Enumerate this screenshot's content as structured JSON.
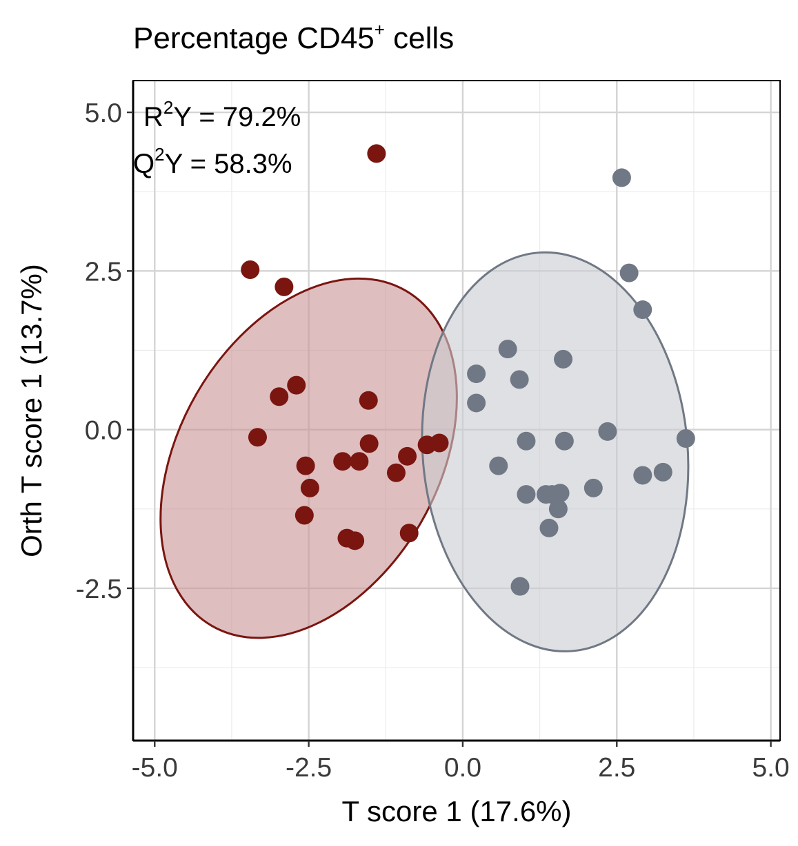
{
  "chart_data": {
    "type": "scatter",
    "title": "Percentage CD45",
    "title_superscript": "+",
    "title_suffix": " cells",
    "xlabel": "T score 1 (17.6%)",
    "ylabel": "Orth T score 1 (13.7%)",
    "xlim": [
      -5.35,
      5.15
    ],
    "ylim": [
      -4.9,
      5.5
    ],
    "xticks": [
      -5.0,
      -2.5,
      0.0,
      2.5,
      5.0
    ],
    "xtick_labels": [
      "-5.0",
      "-2.5",
      "0.0",
      "2.5",
      "5.0"
    ],
    "yticks": [
      -2.5,
      0.0,
      2.5,
      5.0
    ],
    "ytick_labels": [
      "-2.5",
      "0.0",
      "2.5",
      "5.0"
    ],
    "grid": true,
    "legend": "none",
    "annotations": [
      {
        "prefix": "R",
        "sup": "2",
        "suffix": "Y = 79.2%"
      },
      {
        "prefix": "Q",
        "sup": "2",
        "suffix": "Y = 58.3%"
      }
    ],
    "series": [
      {
        "color": "#7a1510",
        "fill": "#c89294",
        "ellipse": {
          "center": [
            -2.5,
            -0.45
          ],
          "rx": 2.1,
          "ry": 3.05,
          "rotation_deg": 30
        },
        "points": [
          [
            -1.4,
            4.35
          ],
          [
            -3.45,
            2.52
          ],
          [
            -2.9,
            2.25
          ],
          [
            -2.7,
            0.7
          ],
          [
            -2.98,
            0.52
          ],
          [
            -1.53,
            0.46
          ],
          [
            -3.33,
            -0.12
          ],
          [
            -2.55,
            -0.57
          ],
          [
            -2.48,
            -0.92
          ],
          [
            -2.57,
            -1.35
          ],
          [
            -1.95,
            -0.5
          ],
          [
            -1.68,
            -0.5
          ],
          [
            -1.52,
            -0.22
          ],
          [
            -1.08,
            -0.68
          ],
          [
            -0.9,
            -0.42
          ],
          [
            -0.58,
            -0.24
          ],
          [
            -0.38,
            -0.21
          ],
          [
            -1.88,
            -1.71
          ],
          [
            -1.75,
            -1.75
          ],
          [
            -0.87,
            -1.63
          ]
        ]
      },
      {
        "color": "#707885",
        "fill": "#c9cbd1",
        "ellipse": {
          "center": [
            1.5,
            -0.35
          ],
          "rx": 2.15,
          "ry": 3.15,
          "rotation_deg": -5
        },
        "points": [
          [
            2.58,
            3.97
          ],
          [
            2.7,
            2.47
          ],
          [
            2.92,
            1.89
          ],
          [
            0.73,
            1.27
          ],
          [
            1.63,
            1.11
          ],
          [
            0.22,
            0.88
          ],
          [
            0.92,
            0.79
          ],
          [
            0.22,
            0.42
          ],
          [
            2.35,
            -0.03
          ],
          [
            3.62,
            -0.14
          ],
          [
            1.03,
            -0.18
          ],
          [
            1.65,
            -0.18
          ],
          [
            0.58,
            -0.57
          ],
          [
            2.92,
            -0.72
          ],
          [
            3.25,
            -0.67
          ],
          [
            2.12,
            -0.92
          ],
          [
            1.03,
            -1.02
          ],
          [
            1.35,
            -1.02
          ],
          [
            1.45,
            -1.02
          ],
          [
            1.58,
            -1.0
          ],
          [
            1.55,
            -1.25
          ],
          [
            1.4,
            -1.55
          ],
          [
            0.93,
            -2.47
          ]
        ]
      }
    ]
  }
}
